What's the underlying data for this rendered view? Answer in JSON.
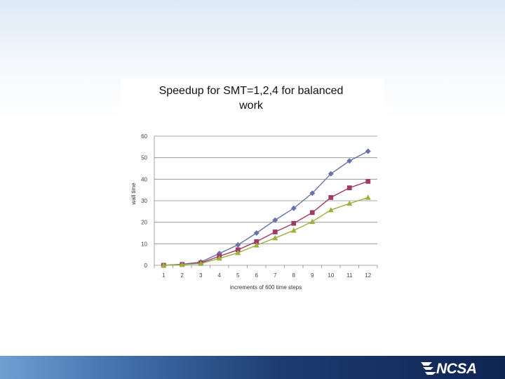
{
  "footer": {
    "logo_text": "NCSA"
  },
  "chart_data": {
    "type": "line",
    "title": "Speedup for SMT=1,2,4 for balanced work",
    "xlabel": "increments of 600 time steps",
    "ylabel": "wall time",
    "categories": [
      "1",
      "2",
      "3",
      "4",
      "5",
      "6",
      "7",
      "8",
      "9",
      "10",
      "11",
      "12"
    ],
    "yticks": [
      "0",
      "10",
      "20",
      "30",
      "40",
      "50",
      "60"
    ],
    "ylim": [
      0,
      60
    ],
    "grid": "horizontal",
    "legend": "none",
    "series": [
      {
        "marker": "diamond",
        "color": "#6a72a8",
        "values": [
          0,
          0.5,
          1.5,
          5.5,
          9.5,
          15,
          21,
          26.5,
          33.5,
          42.5,
          48.5,
          53
        ]
      },
      {
        "marker": "square",
        "color": "#9e3b68",
        "values": [
          0,
          0.4,
          1.1,
          4.2,
          7.2,
          11,
          15.5,
          19.5,
          24.5,
          31.5,
          36,
          39
        ]
      },
      {
        "marker": "triangle",
        "color": "#98b23c",
        "values": [
          0,
          0.3,
          0.8,
          3.2,
          5.8,
          9.3,
          12.7,
          16.2,
          20.3,
          25.7,
          28.7,
          31.5
        ]
      }
    ]
  }
}
